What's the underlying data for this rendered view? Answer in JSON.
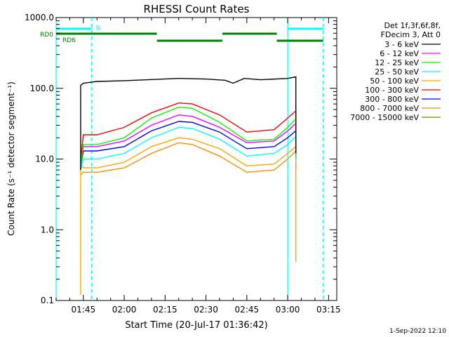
{
  "chart_data": {
    "type": "line",
    "title": "RHESSI Count Rates",
    "xlabel": "Start Time (20-Jul-17 01:36:42)",
    "ylabel": "Count Rate (s⁻¹ detector segment⁻¹)",
    "x_unit": "UT (HH:MM)",
    "xlim": [
      "01:35",
      "03:18"
    ],
    "ylim": [
      0.1,
      1000
    ],
    "yscale": "log",
    "grid": false,
    "legend_position": "right",
    "x_ticks": [
      "01:45",
      "02:00",
      "02:15",
      "02:30",
      "02:45",
      "03:00",
      "03:15"
    ],
    "y_ticks": [
      "0.1",
      "1.0",
      "10.0",
      "100.0",
      "1000.0"
    ],
    "y_tick_values": [
      0.1,
      1,
      10,
      100,
      1000
    ],
    "legend_header": [
      "Det 1f,3f,6f,8f,",
      "FDecim 3, Att 0"
    ],
    "series": [
      {
        "name": "3 - 6 keV",
        "color": "#000000",
        "points": [
          [
            "01:44",
            7
          ],
          [
            "01:44",
            110
          ],
          [
            "01:45",
            118
          ],
          [
            "01:50",
            125
          ],
          [
            "02:00",
            128
          ],
          [
            "02:10",
            133
          ],
          [
            "02:20",
            138
          ],
          [
            "02:30",
            135
          ],
          [
            "02:37",
            130
          ],
          [
            "02:40",
            118
          ],
          [
            "02:44",
            138
          ],
          [
            "02:50",
            132
          ],
          [
            "03:00",
            138
          ],
          [
            "03:03",
            145
          ],
          [
            "03:03",
            12
          ]
        ]
      },
      {
        "name": "6 - 12 keV",
        "color": "#ff00ff",
        "points": [
          [
            "01:44",
            8
          ],
          [
            "01:45",
            15
          ],
          [
            "01:50",
            15
          ],
          [
            "02:00",
            18
          ],
          [
            "02:10",
            30
          ],
          [
            "02:20",
            42
          ],
          [
            "02:25",
            40
          ],
          [
            "02:35",
            28
          ],
          [
            "02:45",
            17
          ],
          [
            "02:55",
            18
          ],
          [
            "03:00",
            25
          ],
          [
            "03:03",
            32
          ],
          [
            "03:03",
            10
          ]
        ]
      },
      {
        "name": "12 - 25 keV",
        "color": "#00ff00",
        "points": [
          [
            "01:44",
            8
          ],
          [
            "01:45",
            16
          ],
          [
            "01:50",
            16
          ],
          [
            "02:00",
            20
          ],
          [
            "02:10",
            38
          ],
          [
            "02:20",
            54
          ],
          [
            "02:25",
            52
          ],
          [
            "02:35",
            33
          ],
          [
            "02:45",
            18
          ],
          [
            "02:55",
            19
          ],
          [
            "03:00",
            28
          ],
          [
            "03:03",
            37
          ],
          [
            "03:03",
            10
          ]
        ]
      },
      {
        "name": "25 - 50 keV",
        "color": "#00ffff",
        "points": [
          [
            "01:44",
            7
          ],
          [
            "01:45",
            10
          ],
          [
            "01:50",
            10
          ],
          [
            "02:00",
            12
          ],
          [
            "02:10",
            20
          ],
          [
            "02:20",
            28
          ],
          [
            "02:25",
            27
          ],
          [
            "02:35",
            19
          ],
          [
            "02:45",
            11
          ],
          [
            "02:55",
            12
          ],
          [
            "03:00",
            16
          ],
          [
            "03:03",
            21
          ],
          [
            "03:03",
            9
          ]
        ]
      },
      {
        "name": "50 - 100 keV",
        "color": "#ffa500",
        "points": [
          [
            "01:44",
            0.12
          ],
          [
            "01:44",
            8
          ],
          [
            "01:45",
            7.5
          ],
          [
            "01:50",
            7.5
          ],
          [
            "02:00",
            9
          ],
          [
            "02:10",
            15
          ],
          [
            "02:20",
            20
          ],
          [
            "02:25",
            19
          ],
          [
            "02:35",
            14
          ],
          [
            "02:45",
            8
          ],
          [
            "02:55",
            8.5
          ],
          [
            "03:00",
            12
          ],
          [
            "03:03",
            15
          ],
          [
            "03:03",
            0.35
          ]
        ]
      },
      {
        "name": "100 - 300 keV",
        "color": "#ff0000",
        "points": [
          [
            "01:44",
            10
          ],
          [
            "01:45",
            22
          ],
          [
            "01:50",
            22
          ],
          [
            "02:00",
            28
          ],
          [
            "02:10",
            45
          ],
          [
            "02:20",
            62
          ],
          [
            "02:25",
            60
          ],
          [
            "02:35",
            42
          ],
          [
            "02:45",
            24
          ],
          [
            "02:55",
            26
          ],
          [
            "03:00",
            38
          ],
          [
            "03:03",
            48
          ],
          [
            "03:03",
            12
          ]
        ]
      },
      {
        "name": "300 - 800 keV",
        "color": "#0000ff",
        "points": [
          [
            "01:44",
            8
          ],
          [
            "01:45",
            13
          ],
          [
            "01:50",
            13
          ],
          [
            "02:00",
            15
          ],
          [
            "02:10",
            25
          ],
          [
            "02:20",
            34
          ],
          [
            "02:25",
            33
          ],
          [
            "02:35",
            24
          ],
          [
            "02:45",
            14
          ],
          [
            "02:55",
            15
          ],
          [
            "03:00",
            20
          ],
          [
            "03:03",
            25
          ],
          [
            "03:03",
            9
          ]
        ]
      },
      {
        "name": "800 - 7000 keV",
        "color": "#ff8c00",
        "points": [
          [
            "01:44",
            6
          ],
          [
            "01:45",
            6.5
          ],
          [
            "01:50",
            6.5
          ],
          [
            "02:00",
            7.5
          ],
          [
            "02:10",
            12
          ],
          [
            "02:20",
            17
          ],
          [
            "02:25",
            16
          ],
          [
            "02:35",
            11
          ],
          [
            "02:45",
            6.5
          ],
          [
            "02:55",
            7
          ],
          [
            "03:00",
            10
          ],
          [
            "03:03",
            13
          ],
          [
            "03:03",
            7
          ]
        ]
      },
      {
        "name": "7000 - 15000 keV",
        "color": "#808000",
        "points": []
      }
    ],
    "attenuator_bars": [
      {
        "label": "RD0",
        "color": "#008000",
        "segments": [
          [
            "01:35",
            "02:12"
          ],
          [
            "02:36",
            "02:56"
          ]
        ]
      },
      {
        "label": "RD6",
        "color": "#008000",
        "segments": [
          [
            "02:12",
            "02:36"
          ],
          [
            "02:56",
            "03:13"
          ]
        ]
      }
    ],
    "night_bars": [
      {
        "label": "N",
        "color": "#00ffff",
        "segments": [
          [
            "01:35",
            "01:48"
          ],
          [
            "03:00",
            "03:13"
          ]
        ]
      }
    ],
    "vertical_markers": [
      {
        "time": "01:35",
        "style": "solid",
        "color": "#00ffff"
      },
      {
        "time": "01:48",
        "style": "dashed",
        "color": "#00ffff"
      },
      {
        "time": "03:00",
        "style": "solid",
        "color": "#00ffff"
      },
      {
        "time": "03:13",
        "style": "dashed",
        "color": "#00ffff"
      }
    ]
  },
  "footer_timestamp": "1-Sep-2022 12:10"
}
